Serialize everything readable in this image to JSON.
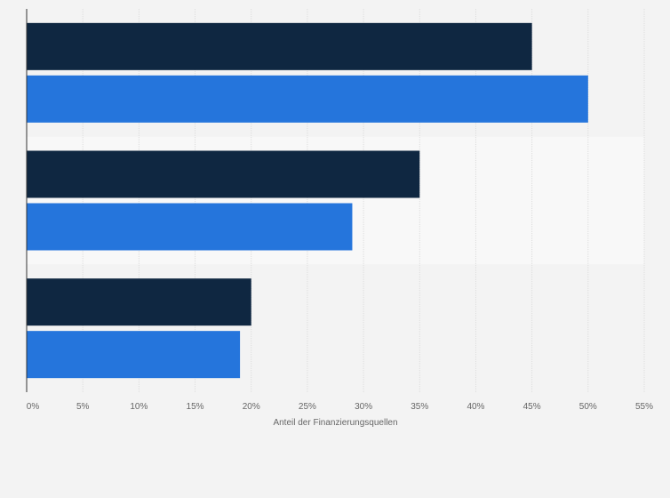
{
  "chart_data": {
    "type": "bar",
    "orientation": "horizontal",
    "categories": [
      "",
      "",
      ""
    ],
    "series": [
      {
        "values": [
          45,
          35,
          20
        ],
        "color": "#0f2741"
      },
      {
        "values": [
          50,
          29,
          19
        ],
        "color": "#2575dc"
      }
    ],
    "xlabel": "Anteil der Finanzierungsquellen",
    "ylabel": "",
    "xlim": [
      0,
      55
    ],
    "xticks": [
      0,
      5,
      10,
      15,
      20,
      25,
      30,
      35,
      40,
      45,
      50,
      55
    ],
    "xtick_labels": [
      "0%",
      "5%",
      "10%",
      "15%",
      "20%",
      "25%",
      "30%",
      "35%",
      "40%",
      "45%",
      "50%",
      "55%"
    ],
    "grid": true,
    "legend": "none",
    "colors": {
      "background": "#f3f3f3",
      "band": "#f8f8f8",
      "grid": "#dddddd",
      "axis": "#333333"
    }
  }
}
